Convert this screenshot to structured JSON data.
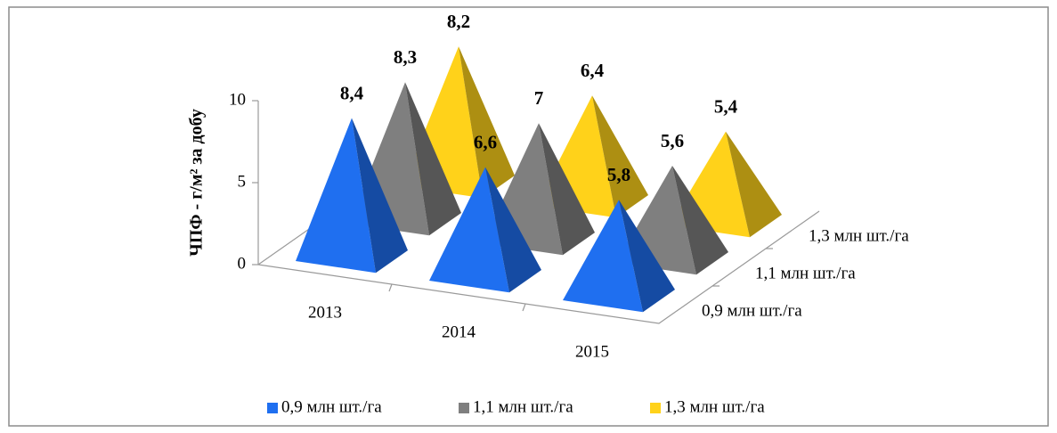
{
  "chart_data": {
    "type": "pyramid3d",
    "y_axis_label": "ЧПФ - г/м² за добу",
    "categories": [
      "2013",
      "2014",
      "2015"
    ],
    "series": [
      {
        "name": "0,9 млн шт./га",
        "color": "#1f6ff0",
        "values": [
          8.4,
          6.6,
          5.8
        ],
        "value_labels": [
          "8,4",
          "6,6",
          "5,8"
        ]
      },
      {
        "name": "1,1 млн шт./га",
        "color": "#7f7f7f",
        "values": [
          8.3,
          7,
          5.6
        ],
        "value_labels": [
          "8,3",
          "7",
          "5,6"
        ]
      },
      {
        "name": "1,3 млн шт./га",
        "color": "#ffd21a",
        "values": [
          8.2,
          6.4,
          5.4
        ],
        "value_labels": [
          "8,2",
          "6,4",
          "5,4"
        ]
      }
    ],
    "ylim": [
      0,
      10
    ],
    "yticks": [
      0,
      5,
      10
    ],
    "legend": "bottom"
  }
}
